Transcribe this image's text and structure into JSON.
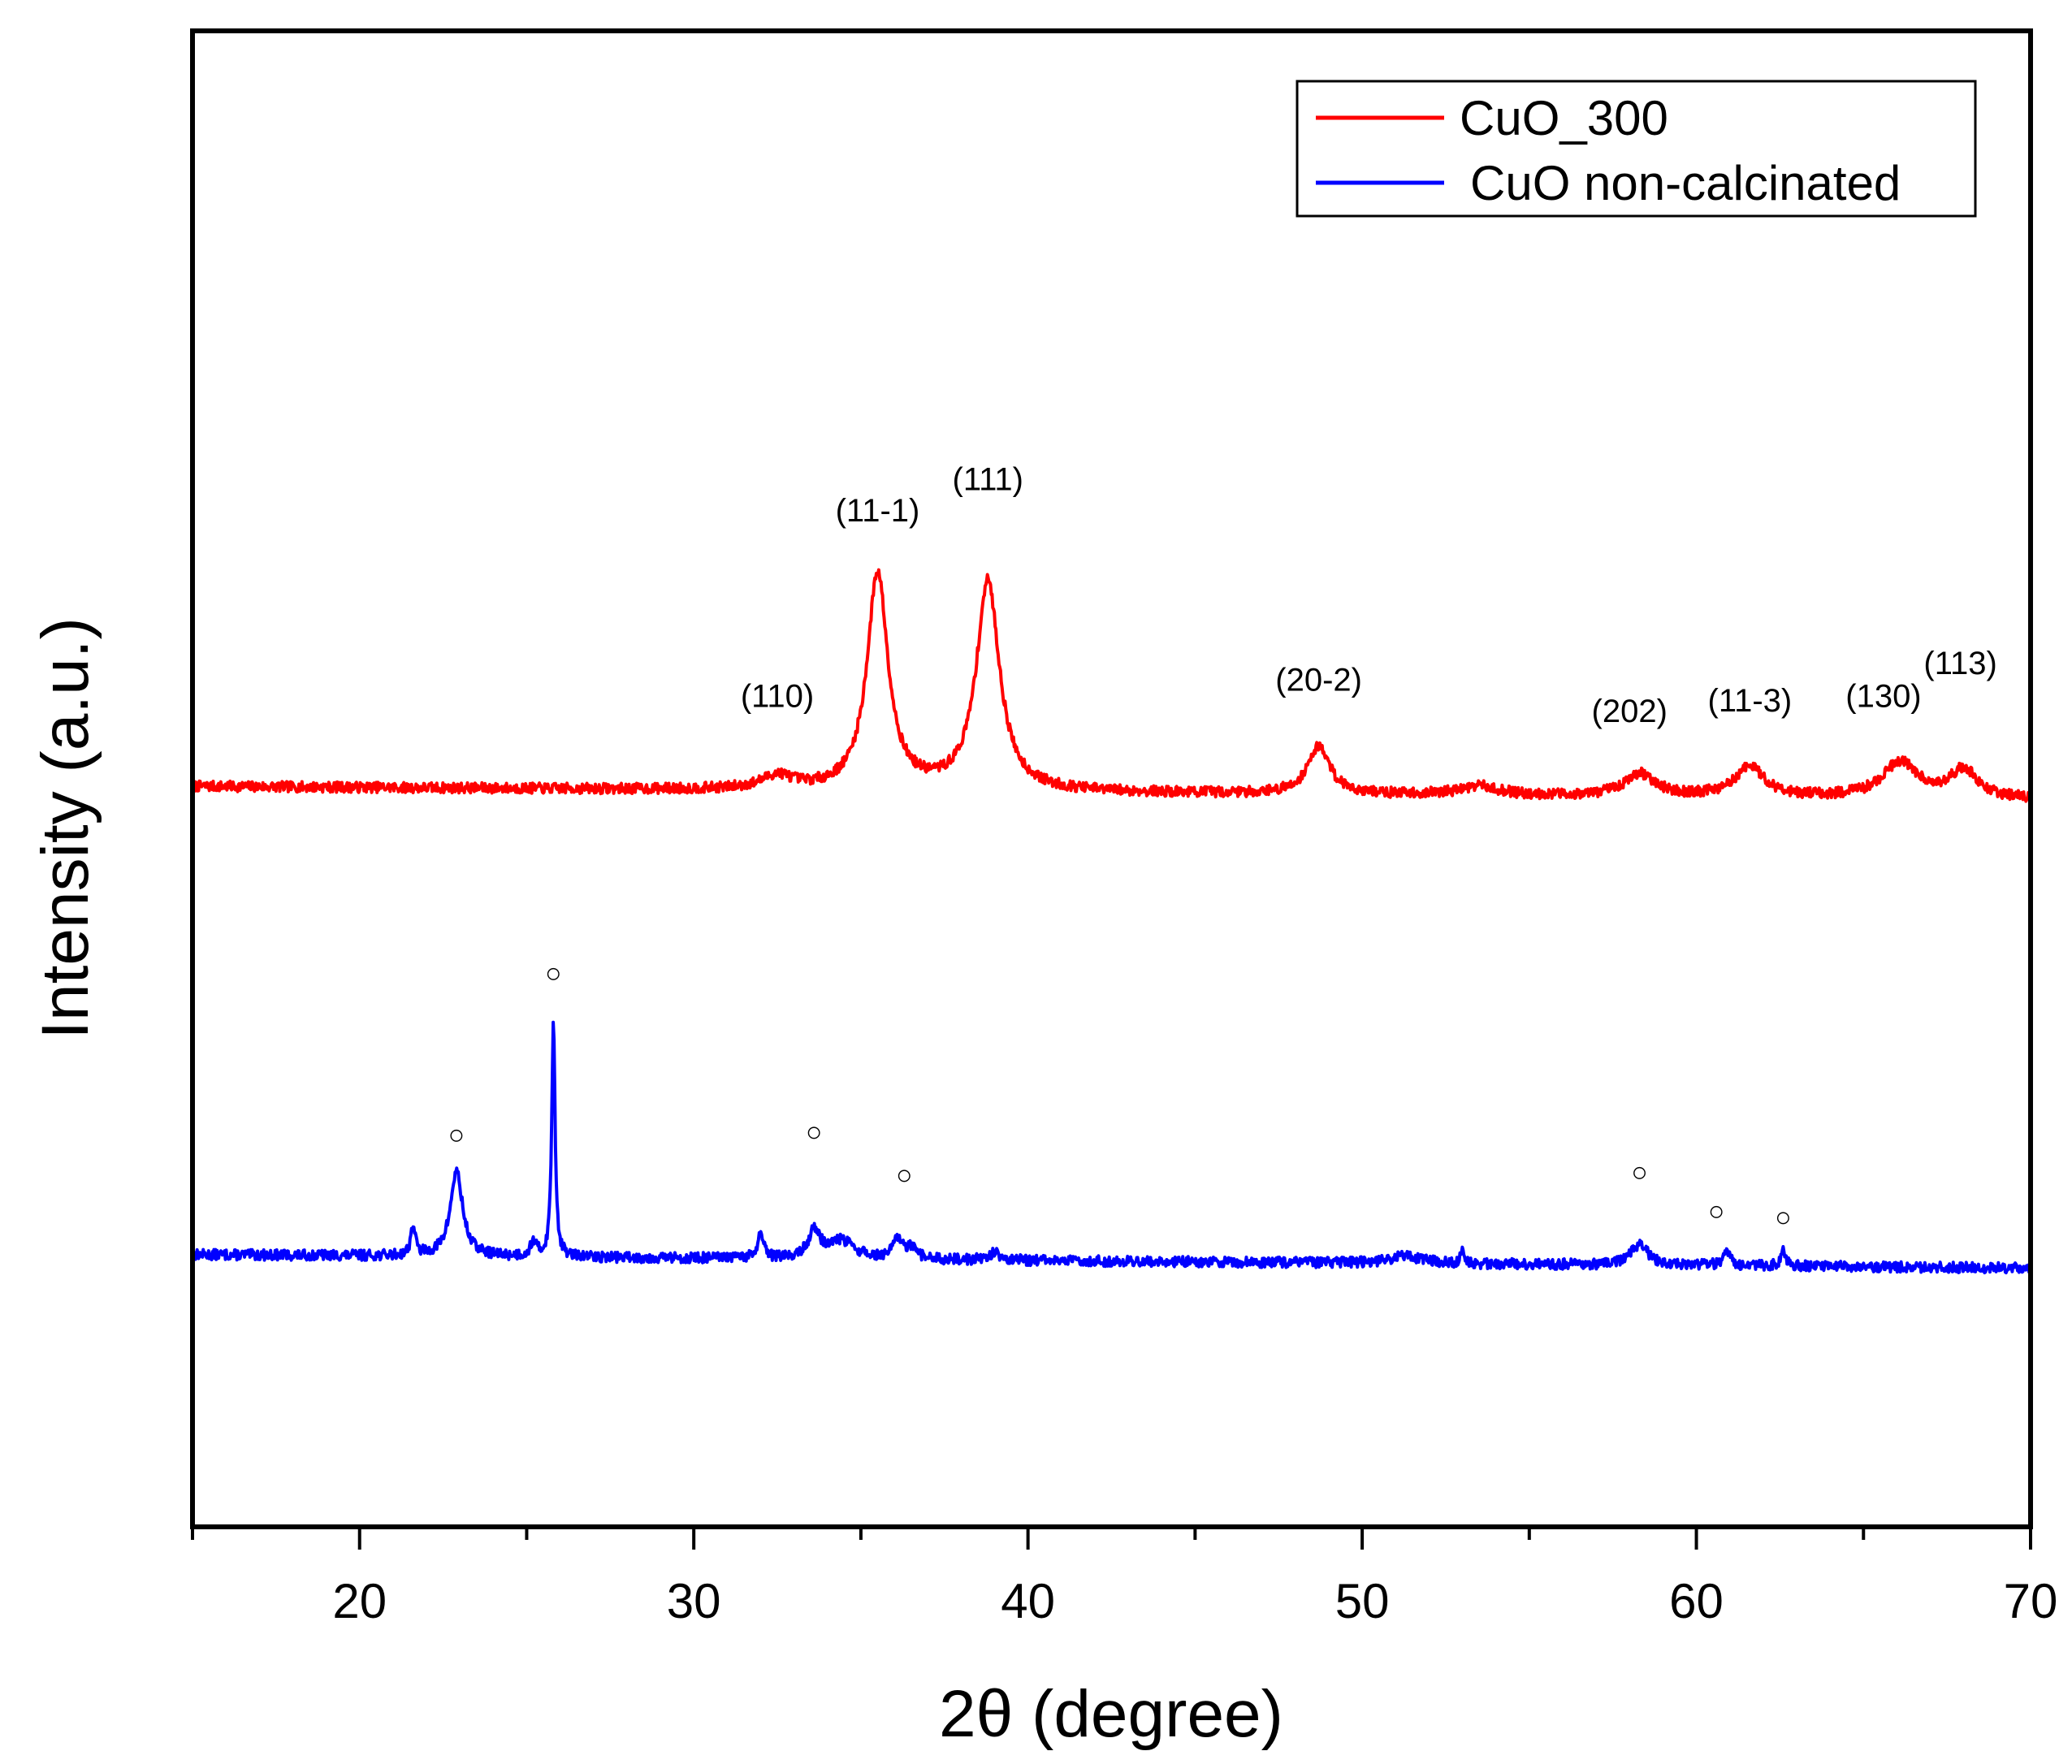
{
  "chart_data": {
    "type": "line",
    "title": "",
    "xlabel": "2θ (degree)",
    "ylabel": "Intensity (a.u.)",
    "xlim": [
      15,
      70
    ],
    "ylim": [
      0,
      100
    ],
    "grid": false,
    "legend_position": "top-right",
    "x_ticks": [
      20,
      30,
      40,
      50,
      60,
      70
    ],
    "x_tick_labels": [
      "20",
      "30",
      "40",
      "50",
      "60",
      "70"
    ],
    "series": [
      {
        "name": "CuO_300",
        "color": "#ff0000",
        "baseline": 49.5,
        "baseline_end": 48.6,
        "noise": 0.35,
        "seed": 7,
        "peaks": [
          {
            "x": 32.5,
            "h": 0.9,
            "w": 0.55
          },
          {
            "x": 35.5,
            "h": 14.5,
            "w": 0.38
          },
          {
            "x": 38.8,
            "h": 14.0,
            "w": 0.42
          },
          {
            "x": 48.7,
            "h": 3.2,
            "w": 0.4
          },
          {
            "x": 53.5,
            "h": 0.6,
            "w": 0.7
          },
          {
            "x": 58.3,
            "h": 1.5,
            "w": 0.55
          },
          {
            "x": 61.6,
            "h": 2.0,
            "w": 0.55
          },
          {
            "x": 66.1,
            "h": 2.4,
            "w": 0.65
          },
          {
            "x": 68.0,
            "h": 1.9,
            "w": 0.5
          }
        ]
      },
      {
        "name": "CuO non-calcinated",
        "color": "#0000ff",
        "baseline": 18.2,
        "baseline_end": 17.3,
        "noise": 0.35,
        "seed": 13,
        "peaks": [
          {
            "x": 21.6,
            "h": 2.0,
            "w": 0.08
          },
          {
            "x": 22.9,
            "h": 5.7,
            "w": 0.22
          },
          {
            "x": 25.2,
            "h": 1.0,
            "w": 0.1
          },
          {
            "x": 25.8,
            "h": 15.8,
            "w": 0.06
          },
          {
            "x": 32.0,
            "h": 1.6,
            "w": 0.1
          },
          {
            "x": 33.6,
            "h": 1.8,
            "w": 0.2
          },
          {
            "x": 34.4,
            "h": 1.2,
            "w": 0.5
          },
          {
            "x": 36.1,
            "h": 1.3,
            "w": 0.15
          },
          {
            "x": 36.5,
            "h": 0.7,
            "w": 0.2
          },
          {
            "x": 39.0,
            "h": 0.5,
            "w": 0.2
          },
          {
            "x": 51.3,
            "h": 0.5,
            "w": 0.6
          },
          {
            "x": 53.0,
            "h": 0.8,
            "w": 0.06
          },
          {
            "x": 58.3,
            "h": 1.4,
            "w": 0.3
          },
          {
            "x": 60.9,
            "h": 1.0,
            "w": 0.12
          },
          {
            "x": 62.6,
            "h": 1.0,
            "w": 0.1
          }
        ]
      }
    ],
    "annotations": [
      {
        "text": "(110)",
        "x": 32.5,
        "y": 54.8
      },
      {
        "text": "(11-1)",
        "x": 35.5,
        "y": 67.2
      },
      {
        "text": "(111)",
        "x": 38.8,
        "y": 69.3
      },
      {
        "text": "(20-2)",
        "x": 48.7,
        "y": 55.9
      },
      {
        "text": "(202)",
        "x": 58.0,
        "y": 53.8
      },
      {
        "text": "(11-3)",
        "x": 61.6,
        "y": 54.5
      },
      {
        "text": "(130)",
        "x": 65.6,
        "y": 54.8
      },
      {
        "text": "(113)",
        "x": 67.9,
        "y": 57.0
      }
    ],
    "markers": [
      {
        "symbol": "○",
        "x": 25.8,
        "y": 36.4
      },
      {
        "symbol": "○",
        "x": 22.9,
        "y": 25.6
      },
      {
        "symbol": "○",
        "x": 33.6,
        "y": 25.8
      },
      {
        "symbol": "○",
        "x": 36.3,
        "y": 22.9
      },
      {
        "symbol": "○",
        "x": 58.3,
        "y": 23.1
      },
      {
        "symbol": "○",
        "x": 60.6,
        "y": 20.5
      },
      {
        "symbol": "○",
        "x": 62.6,
        "y": 20.1
      }
    ]
  }
}
